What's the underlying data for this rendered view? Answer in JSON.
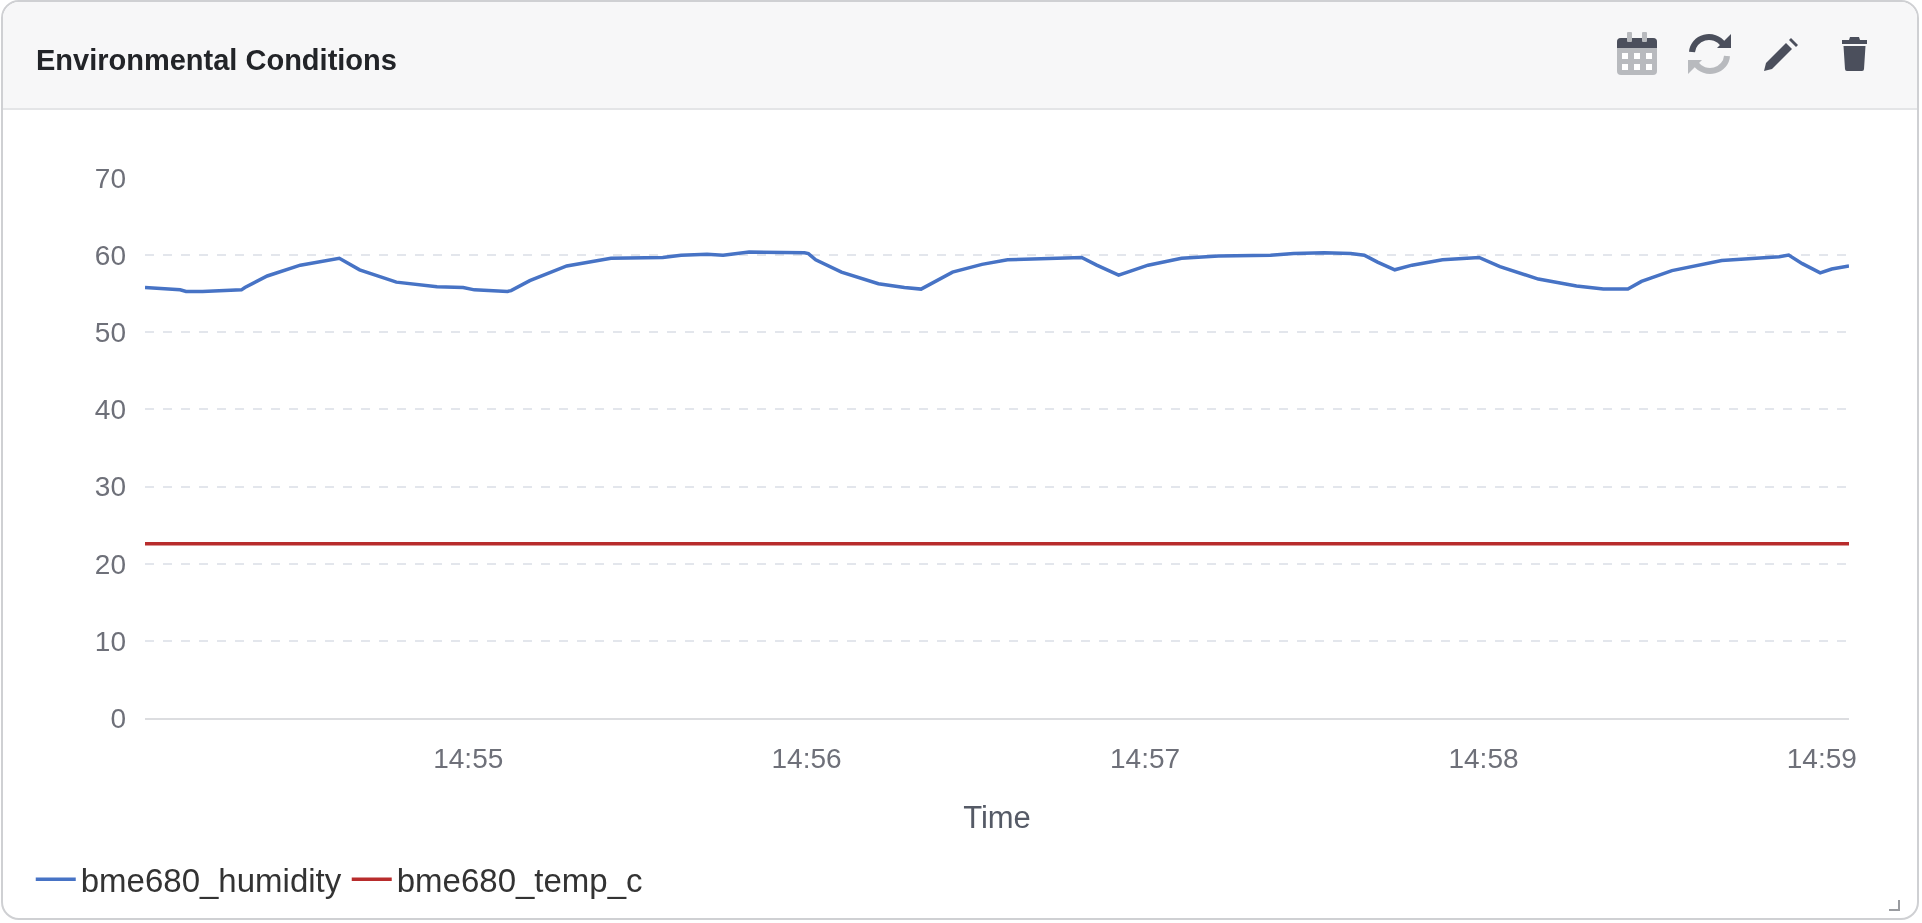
{
  "chart_data": {
    "type": "line",
    "title": "Environmental Conditions",
    "xlabel": "Time",
    "xlim": [
      14.90075,
      14.98467
    ],
    "xticks": [
      {
        "value": 14.91667,
        "label": "14:55"
      },
      {
        "value": 14.93333,
        "label": "14:56"
      },
      {
        "value": 14.95,
        "label": "14:57"
      },
      {
        "value": 14.96667,
        "label": "14:58"
      },
      {
        "value": 14.98333,
        "label": "14:59"
      }
    ],
    "ylim": [
      0,
      70
    ],
    "yticks": [
      0,
      10,
      20,
      30,
      40,
      50,
      60,
      70
    ],
    "grid": "y",
    "legend": "bottom left",
    "marker": "none",
    "line_style": "solid",
    "series": [
      {
        "name": "bme680_humidity",
        "color": "#4773c5",
        "x": [
          14.90075,
          14.90248,
          14.90277,
          14.90358,
          14.9055,
          14.90567,
          14.90677,
          14.9084,
          14.91032,
          14.91132,
          14.91313,
          14.91513,
          14.91642,
          14.91697,
          14.9186,
          14.91878,
          14.9197,
          14.92152,
          14.9237,
          14.92625,
          14.92715,
          14.92843,
          14.92922,
          14.9305,
          14.93323,
          14.93342,
          14.93378,
          14.93505,
          14.93687,
          14.93815,
          14.93897,
          14.94052,
          14.94197,
          14.94323,
          14.94688,
          14.94762,
          14.9487,
          14.94925,
          14.95015,
          14.9518,
          14.95362,
          14.95618,
          14.95732,
          14.95882,
          14.96013,
          14.9608,
          14.96145,
          14.9623,
          14.96315,
          14.96465,
          14.96645,
          14.96748,
          14.96937,
          14.97125,
          14.97257,
          14.97378,
          14.97445,
          14.97595,
          14.9784,
          14.98123,
          14.9817,
          14.98237,
          14.98325,
          14.98382,
          14.98467
        ],
        "values": [
          55.8,
          55.5,
          55.3,
          55.3,
          55.5,
          55.8,
          57.3,
          58.7,
          59.6,
          58.1,
          56.5,
          55.9,
          55.8,
          55.5,
          55.3,
          55.4,
          56.7,
          58.6,
          59.6,
          59.7,
          60.0,
          60.1,
          60.0,
          60.4,
          60.3,
          60.2,
          59.4,
          57.8,
          56.3,
          55.8,
          55.6,
          57.8,
          58.8,
          59.4,
          59.7,
          58.7,
          57.4,
          57.9,
          58.7,
          59.6,
          59.9,
          60.0,
          60.2,
          60.3,
          60.2,
          60.0,
          59.1,
          58.1,
          58.7,
          59.4,
          59.7,
          58.5,
          56.9,
          56.0,
          55.6,
          55.6,
          56.6,
          58.0,
          59.3,
          59.8,
          60.0,
          58.9,
          57.7,
          58.2,
          58.6
        ]
      },
      {
        "name": "bme680_temp_c",
        "color": "#b82c2c",
        "x": [
          14.90075,
          14.91,
          14.92,
          14.93,
          14.94,
          14.95,
          14.96,
          14.97,
          14.98,
          14.98467
        ],
        "values": [
          22.6,
          22.6,
          22.6,
          22.6,
          22.6,
          22.6,
          22.6,
          22.6,
          22.6,
          22.6
        ]
      }
    ]
  }
}
